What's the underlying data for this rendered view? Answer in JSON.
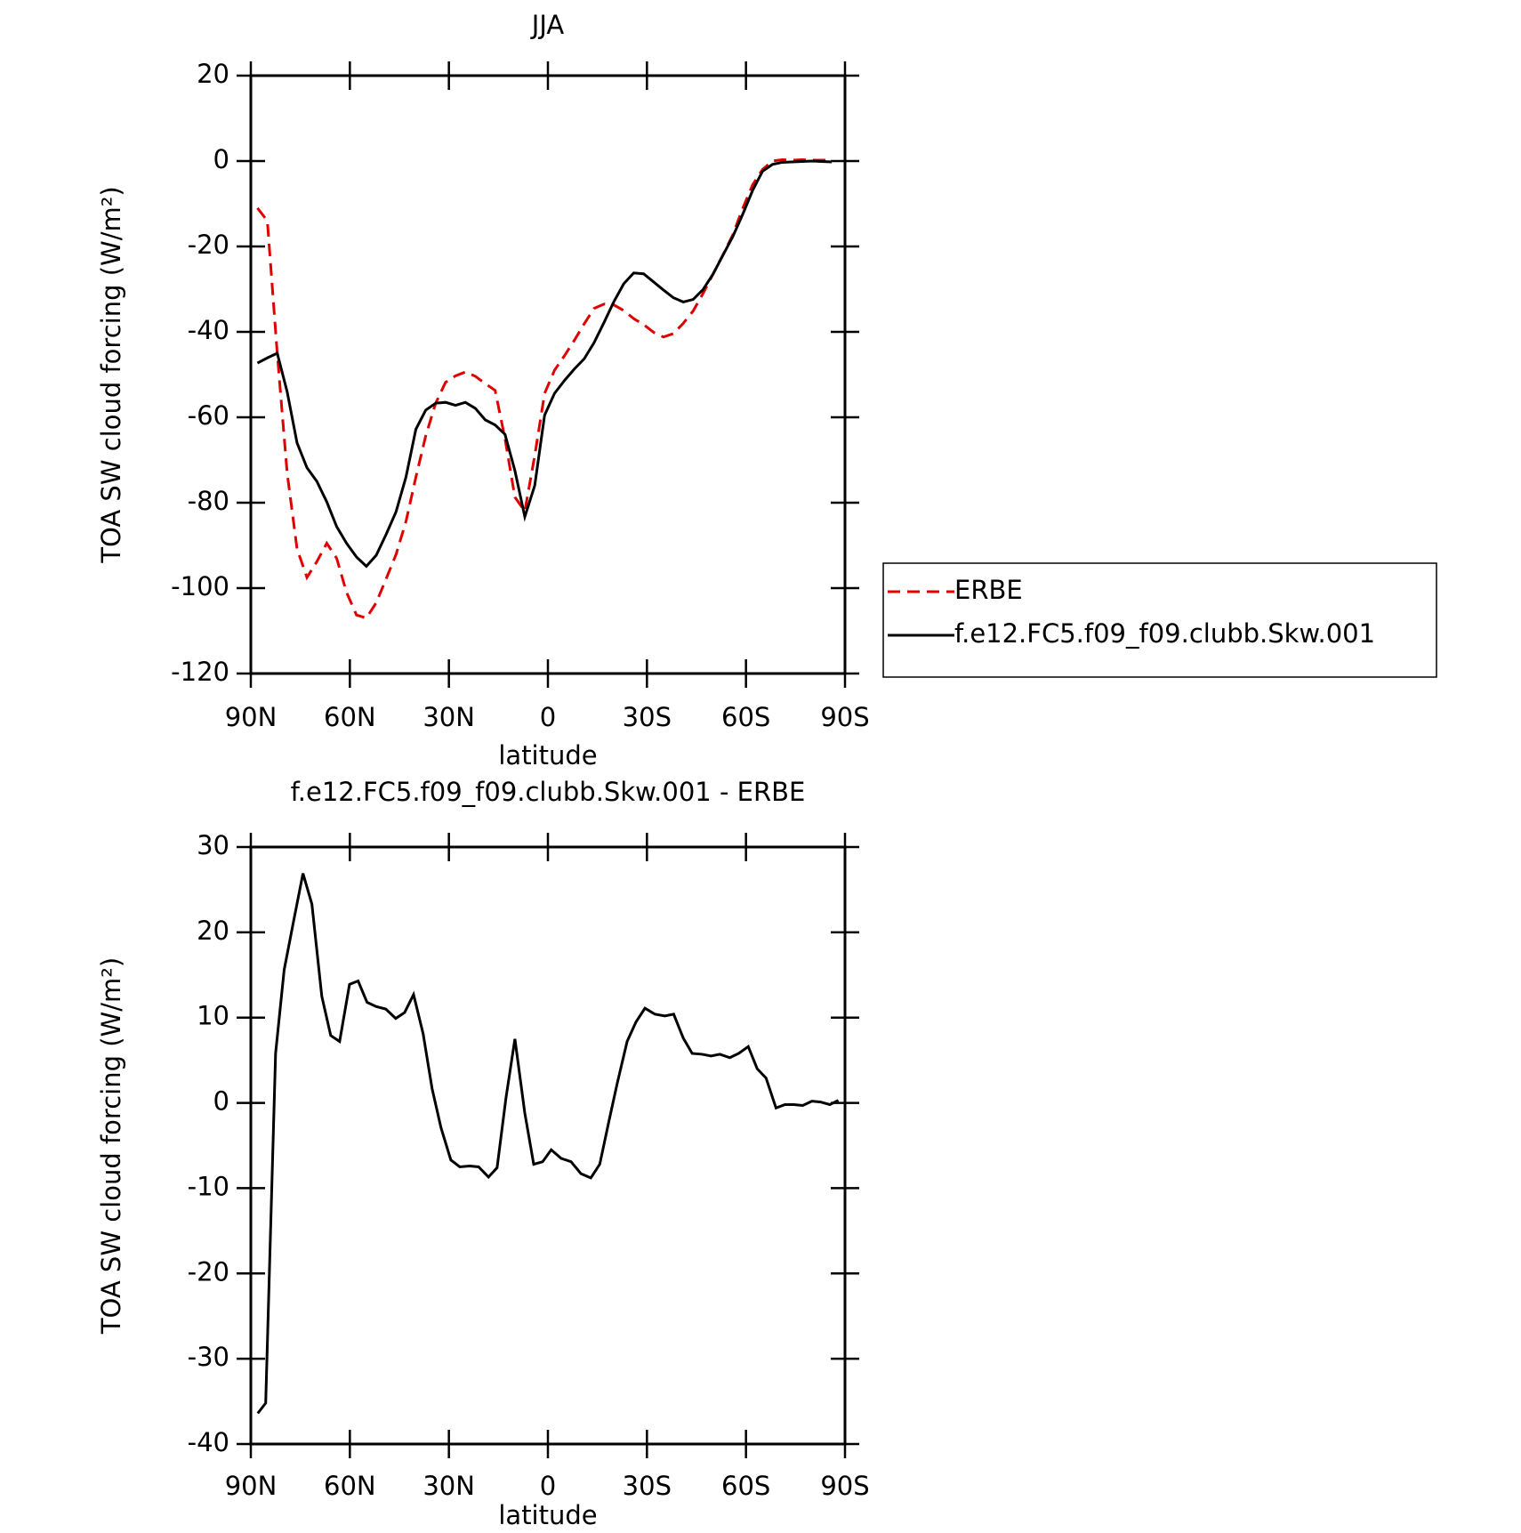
{
  "chart_data": [
    {
      "type": "line",
      "title": "JJA",
      "xlabel": "latitude",
      "ylabel": "TOA SW cloud forcing (W/m²)",
      "xlim": [
        90,
        -90
      ],
      "ylim": [
        -120,
        20
      ],
      "xticks": [
        {
          "value": 90,
          "label": "90N"
        },
        {
          "value": 60,
          "label": "60N"
        },
        {
          "value": 30,
          "label": "30N"
        },
        0,
        {
          "value": -30,
          "label": "30S"
        },
        {
          "value": -60,
          "label": "60S"
        },
        {
          "value": -90,
          "label": "90S"
        }
      ],
      "yticks": [
        -120,
        -100,
        -80,
        -60,
        -40,
        -20,
        0,
        20
      ],
      "legend": "right",
      "x": [
        88,
        85,
        82,
        79,
        76,
        73,
        70,
        67,
        64,
        61,
        58,
        55,
        52,
        49,
        46,
        43,
        40,
        37,
        34,
        31,
        28,
        25,
        22,
        19,
        16,
        13,
        10,
        7,
        4,
        1,
        -2,
        -5,
        -8,
        -11,
        -14,
        -17,
        -20,
        -23,
        -26,
        -29,
        -32,
        -35,
        -38,
        -41,
        -44,
        -47,
        -50,
        -53,
        -56,
        -59,
        -62,
        -65,
        -68,
        -71,
        -74,
        -77,
        -80,
        -83,
        -86
      ],
      "series": [
        {
          "name": "ERBE",
          "color": "#e00000",
          "linestyle": "dashed",
          "values": [
            -11,
            -14,
            -45,
            -73,
            -90.8,
            -97.5,
            -93.8,
            -89.5,
            -93,
            -101,
            -106.3,
            -107,
            -103.4,
            -97.8,
            -92.1,
            -84.4,
            -74,
            -64.3,
            -56.7,
            -51.8,
            -50.3,
            -49.4,
            -50.4,
            -52.1,
            -53.7,
            -65,
            -78.7,
            -82,
            -69,
            -54.4,
            -49,
            -45.6,
            -42,
            -38.1,
            -34.5,
            -33.5,
            -33.7,
            -35,
            -36.9,
            -38.3,
            -40.1,
            -41.2,
            -40.4,
            -38,
            -35.1,
            -31,
            -26.5,
            -22,
            -17.3,
            -11.1,
            -5.6,
            -2,
            0,
            0.3,
            0.2,
            0.3,
            0.2,
            0.2,
            0.2
          ]
        },
        {
          "name": "f.e12.FC5.f09_f09.clubb.Skw.001",
          "color": "#000000",
          "linestyle": "solid",
          "values": [
            -47.3,
            -46.1,
            -45,
            -54,
            -66,
            -71.8,
            -75,
            -79.8,
            -85.6,
            -89.5,
            -92.7,
            -94.9,
            -92.3,
            -87.4,
            -82.1,
            -74,
            -62.8,
            -58.3,
            -56.7,
            -56.5,
            -57.2,
            -56.5,
            -57.9,
            -60.6,
            -61.8,
            -64,
            -72.5,
            -83.3,
            -76,
            -59.5,
            -54.4,
            -51.4,
            -48.7,
            -46.3,
            -42.5,
            -37.8,
            -32.9,
            -28.7,
            -26.2,
            -26.4,
            -28.3,
            -30.2,
            -32,
            -33,
            -32.4,
            -30.1,
            -26.5,
            -22.1,
            -17.7,
            -12.5,
            -6.9,
            -2.4,
            -0.8,
            -0.3,
            -0.2,
            -0.1,
            0,
            -0.1,
            -0.2
          ]
        }
      ]
    },
    {
      "type": "line",
      "title": "f.e12.FC5.f09_f09.clubb.Skw.001 - ERBE",
      "xlabel": "latitude",
      "ylabel": "TOA SW cloud forcing (W/m²)",
      "xlim": [
        90,
        -90
      ],
      "ylim": [
        -40,
        30
      ],
      "xticks": [
        {
          "value": 90,
          "label": "90N"
        },
        {
          "value": 60,
          "label": "60N"
        },
        {
          "value": 30,
          "label": "30N"
        },
        0,
        {
          "value": -30,
          "label": "30S"
        },
        {
          "value": -60,
          "label": "60S"
        },
        {
          "value": -90,
          "label": "90S"
        }
      ],
      "yticks": [
        -40,
        -30,
        -20,
        -10,
        0,
        10,
        20,
        30
      ],
      "x": [
        87.9,
        85.5,
        82.5,
        79.9,
        76.9,
        74.2,
        71.5,
        68.5,
        65.8,
        63.1,
        60.1,
        57.5,
        54.8,
        52.1,
        49.1,
        46.1,
        43.4,
        40.7,
        37.8,
        35.1,
        32.4,
        29.4,
        26.7,
        23.7,
        21,
        18,
        15.4,
        12.7,
        10,
        7,
        4.3,
        1.6,
        -1,
        -4,
        -7,
        -10,
        -13,
        -15.7,
        -18.4,
        -21,
        -24,
        -26.7,
        -29.4,
        -32.4,
        -35.4,
        -38.1,
        -41,
        -43.7,
        -46.7,
        -49.4,
        -52.1,
        -55.1,
        -57.8,
        -60.7,
        -63.4,
        -66.1,
        -69.1,
        -71.8,
        -74.5,
        -77.2,
        -80,
        -82.6,
        -85.4,
        -88
      ],
      "series": [
        {
          "color": "#000000",
          "linestyle": "solid",
          "values": [
            -36.4,
            -35.2,
            5.8,
            15.6,
            21.6,
            26.9,
            23.3,
            12.5,
            7.9,
            7.2,
            13.9,
            14.3,
            11.8,
            11.3,
            11,
            9.9,
            10.6,
            12.7,
            8.1,
            1.7,
            -2.9,
            -6.7,
            -7.5,
            -7.4,
            -7.5,
            -8.7,
            -7.6,
            0.6,
            7.5,
            -1.2,
            -7.2,
            -6.9,
            -5.5,
            -6.5,
            -6.9,
            -8.3,
            -8.8,
            -7.2,
            -2.3,
            2.3,
            7.2,
            9.5,
            11.1,
            10.4,
            10.2,
            10.4,
            7.6,
            5.8,
            5.7,
            5.5,
            5.7,
            5.3,
            5.8,
            6.6,
            4,
            2.9,
            -0.6,
            -0.2,
            -0.2,
            -0.3,
            0.2,
            0.1,
            -0.2,
            0.3
          ]
        }
      ]
    }
  ]
}
